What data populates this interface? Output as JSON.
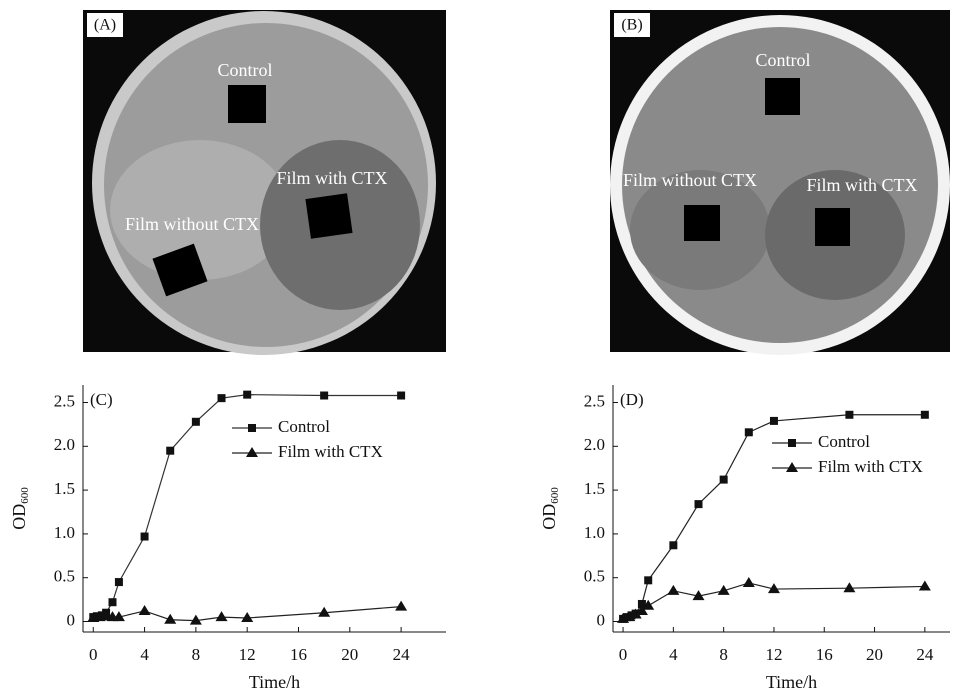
{
  "photos": [
    {
      "label": "(A)",
      "texts": [
        "Control",
        "Film with CTX",
        "Film without CTX"
      ]
    },
    {
      "label": "(B)",
      "texts": [
        "Control",
        "Film without CTX",
        "Film with CTX"
      ]
    }
  ],
  "chart_data": [
    {
      "type": "line",
      "label": "(C)",
      "y_label": "OD",
      "y_label_sub": "600",
      "x_label": "Time/h",
      "xlim": [
        -0.8,
        27.5
      ],
      "ylim": [
        -0.12,
        2.7
      ],
      "xticks": [
        0,
        4,
        8,
        12,
        16,
        20,
        24
      ],
      "yticks": [
        0,
        0.5,
        {
          "value": 1,
          "label": "1.0"
        },
        1.5,
        {
          "value": 2,
          "label": "2.0"
        },
        2.5
      ],
      "series": [
        {
          "name": "Control",
          "color": "#333333",
          "marker": "square",
          "x": [
            0,
            0.33,
            0.67,
            1,
            1.5,
            2,
            4,
            6,
            8,
            10,
            12,
            18,
            24
          ],
          "values": [
            0.05,
            0.06,
            0.07,
            0.1,
            0.22,
            0.45,
            0.97,
            1.95,
            2.28,
            2.55,
            2.59,
            2.58,
            2.58
          ]
        },
        {
          "name": "Film with CTX",
          "color": "#222222",
          "marker": "triangle",
          "x": [
            0,
            0.5,
            1,
            1.5,
            2,
            4,
            6,
            8,
            10,
            12,
            18,
            24
          ],
          "values": [
            0.04,
            0.05,
            0.06,
            0.05,
            0.05,
            0.12,
            0.02,
            0.01,
            0.05,
            0.04,
            0.1,
            0.17
          ]
        }
      ]
    },
    {
      "type": "line",
      "label": "(D)",
      "y_label": "OD",
      "y_label_sub": "600",
      "x_label": "Time/h",
      "xlim": [
        -0.8,
        26
      ],
      "ylim": [
        -0.12,
        2.7
      ],
      "xticks": [
        0,
        4,
        8,
        12,
        16,
        20,
        24
      ],
      "yticks": [
        0,
        0.5,
        {
          "value": 1,
          "label": "1.0"
        },
        1.5,
        {
          "value": 2,
          "label": "2.0"
        },
        2.5
      ],
      "series": [
        {
          "name": "Control",
          "color": "#222222",
          "marker": "square",
          "x": [
            0,
            0.33,
            0.67,
            1,
            1.5,
            2,
            4,
            6,
            8,
            10,
            12,
            18,
            24
          ],
          "values": [
            0.03,
            0.05,
            0.07,
            0.09,
            0.2,
            0.47,
            0.87,
            1.34,
            1.62,
            2.16,
            2.29,
            2.36,
            2.36
          ]
        },
        {
          "name": "Film with CTX",
          "color": "#222222",
          "marker": "triangle",
          "x": [
            0,
            0.5,
            1,
            1.5,
            2,
            4,
            6,
            8,
            10,
            12,
            18,
            24
          ],
          "values": [
            0.03,
            0.05,
            0.08,
            0.12,
            0.18,
            0.35,
            0.29,
            0.35,
            0.44,
            0.37,
            0.38,
            0.4
          ]
        }
      ]
    }
  ]
}
